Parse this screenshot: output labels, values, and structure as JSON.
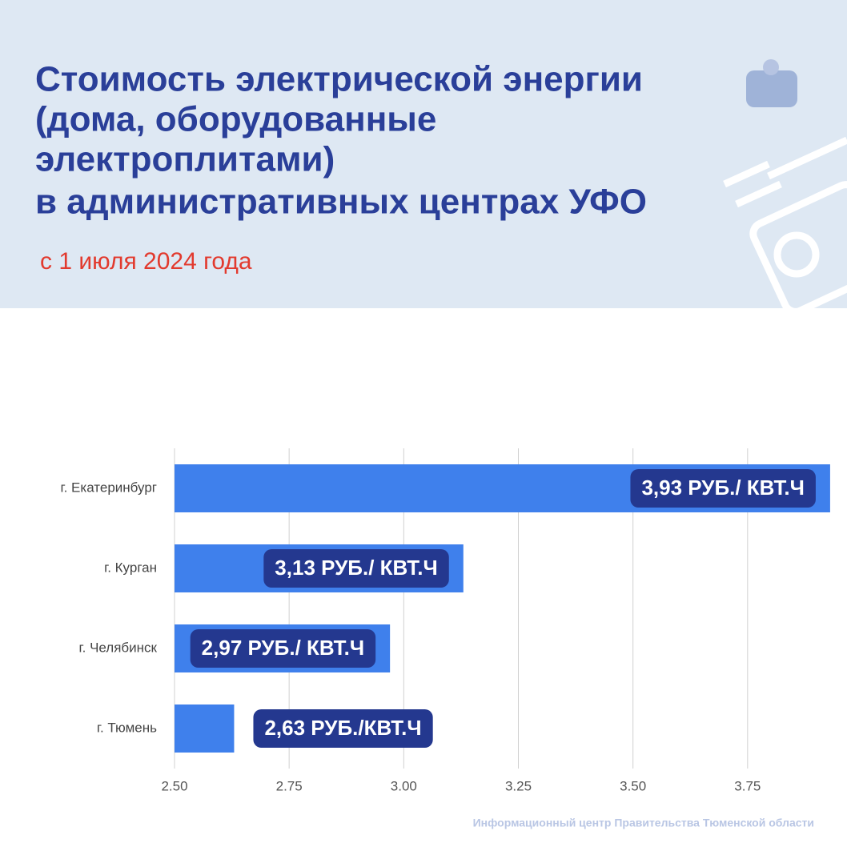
{
  "chart_data": {
    "type": "bar",
    "orientation": "horizontal",
    "title": [
      "Стоимость электрической энергии",
      "(дома, оборудованные",
      "электроплитами)",
      "в административных центрах УФО"
    ],
    "subtitle": "с 1 июля 2024 года",
    "categories": [
      "г. Екатеринбург",
      "г. Курган",
      "г. Челябинск",
      "г. Тюмень"
    ],
    "values": [
      3.93,
      3.13,
      2.97,
      2.63
    ],
    "value_labels": [
      "3,93 РУБ./ КВТ.Ч",
      "3,13 РУБ./ КВТ.Ч",
      "2,97 РУБ./ КВТ.Ч",
      "2,63 РУБ./КВТ.Ч"
    ],
    "color": "#3f80ec",
    "label_color": "#24388f",
    "xlim": [
      2.5,
      4.0
    ],
    "xticks": [
      {
        "value": 2.5,
        "label": "2.50"
      },
      2.75,
      {
        "value": 3.0,
        "label": "3.00"
      },
      3.25,
      {
        "value": 3.5,
        "label": "3.50"
      },
      3.75
    ],
    "grid": true,
    "source": "Информационный центр Правительства Тюменской области"
  }
}
